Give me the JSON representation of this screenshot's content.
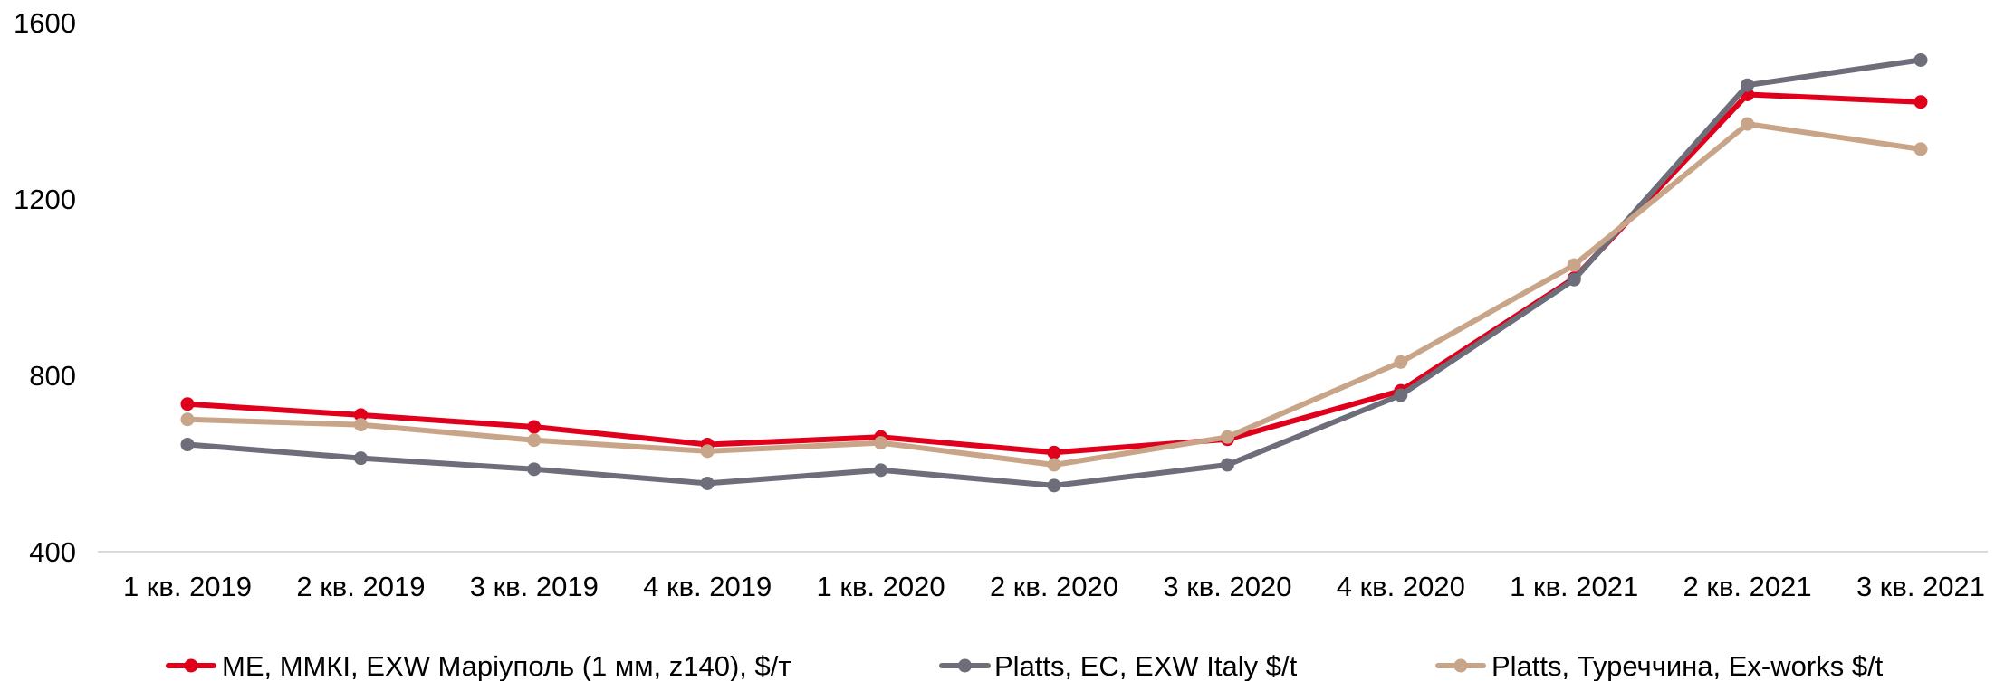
{
  "chart_data": {
    "type": "line",
    "categories": [
      "1 кв. 2019",
      "2 кв. 2019",
      "3 кв. 2019",
      "4 кв. 2019",
      "1 кв. 2020",
      "2 кв. 2020",
      "3 кв. 2020",
      "4 кв. 2020",
      "1 кв. 2021",
      "2 кв. 2021",
      "3 кв. 2021"
    ],
    "ylim": [
      400,
      1600
    ],
    "yticks": [
      400,
      800,
      1200,
      1600
    ],
    "ytick_labels": [
      "400",
      "800",
      "1200",
      "1600"
    ],
    "grid": false,
    "legend_position": "bottom",
    "series": [
      {
        "name": "МЕ, ММКІ, EXW Маріуполь (1 мм, z140), $/т",
        "color": "#E0001B",
        "values": [
          735,
          710,
          683,
          643,
          660,
          625,
          655,
          765,
          1020,
          1437,
          1420
        ]
      },
      {
        "name": "Platts, ЕС, EXW Italy $/t",
        "color": "#6E6E7A",
        "values": [
          643,
          612,
          587,
          555,
          585,
          550,
          597,
          755,
          1017,
          1458,
          1515
        ]
      },
      {
        "name": "Platts, Туреччина,  Ex-works $/t",
        "color": "#C8A588",
        "values": [
          700,
          688,
          653,
          628,
          647,
          597,
          660,
          830,
          1050,
          1370,
          1313
        ]
      }
    ]
  }
}
